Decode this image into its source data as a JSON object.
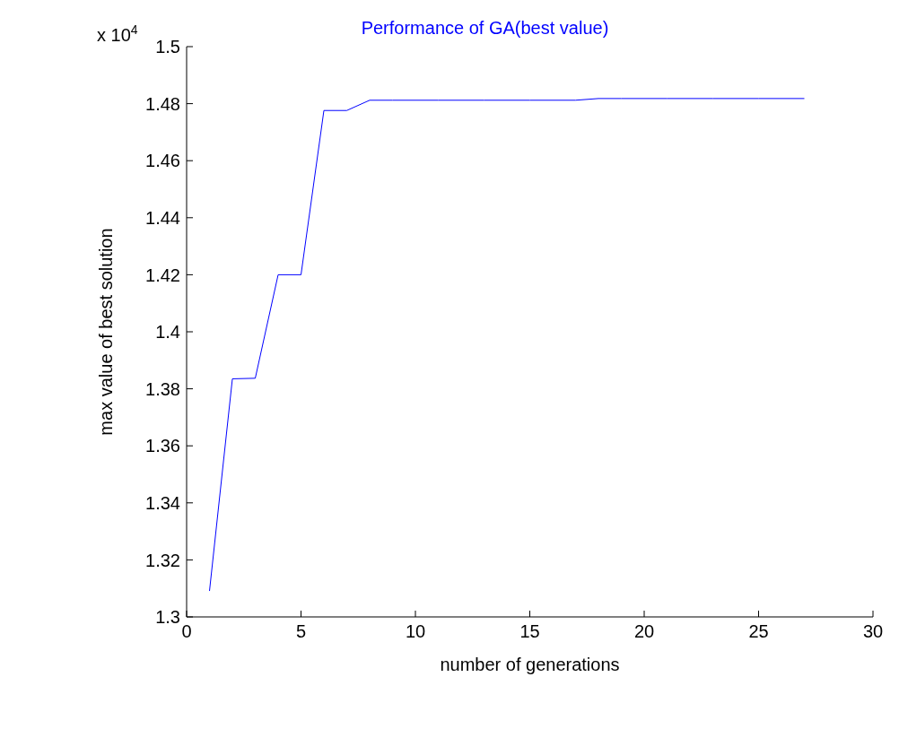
{
  "chart_data": {
    "type": "line",
    "title": "Performance of GA(best value)",
    "xlabel": "number of generations",
    "ylabel": "max value of best solution",
    "annotations": [
      "x 10$^{4}$"
    ],
    "x": [
      1,
      2,
      3,
      4,
      5,
      6,
      7,
      8,
      9,
      10,
      11,
      12,
      13,
      14,
      15,
      16,
      17,
      18,
      19,
      20,
      21,
      22,
      23,
      24,
      25,
      26,
      27
    ],
    "series": [
      {
        "color": "#0000ff",
        "values": [
          1.3091,
          1.3835,
          1.3837,
          1.42,
          1.42,
          1.4776,
          1.4776,
          1.4812,
          1.4812,
          1.4812,
          1.4812,
          1.4812,
          1.4812,
          1.4812,
          1.4812,
          1.4812,
          1.4812,
          1.4818,
          1.4818,
          1.4818,
          1.4818,
          1.4818,
          1.4818,
          1.4818,
          1.4818,
          1.4818,
          1.4818
        ]
      }
    ],
    "xlim": [
      0,
      30
    ],
    "xticks": [
      0,
      5,
      10,
      15,
      20,
      25,
      30
    ],
    "ylim": [
      1.3,
      1.5
    ],
    "yticks": [
      1.3,
      1.32,
      1.34,
      1.36,
      1.38,
      1.4,
      1.42,
      1.44,
      1.46,
      1.48,
      1.5
    ],
    "grid": false,
    "marker": "none",
    "line_style": "solid"
  }
}
